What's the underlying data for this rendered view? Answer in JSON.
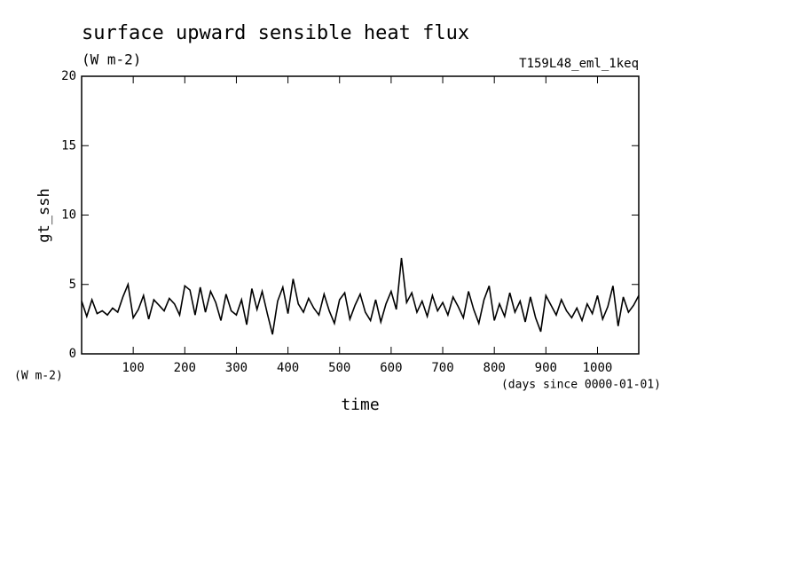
{
  "chart_data": {
    "type": "line",
    "title": "surface upward sensible heat flux",
    "subtitle": "(W m-2)",
    "annotation": "T159L48_eml_1keq",
    "y_label": "gt_ssh",
    "y_units": "(W m-2)",
    "x_label": "time",
    "x_units": "(days since 0000-01-01)",
    "xlim": [
      0,
      1080
    ],
    "ylim": [
      0,
      20
    ],
    "xticks": [
      100,
      200,
      300,
      400,
      500,
      600,
      700,
      800,
      900,
      1000
    ],
    "yticks": [
      0,
      5,
      10,
      15,
      20
    ],
    "color": "#000000",
    "x": [
      0,
      10,
      20,
      30,
      40,
      50,
      60,
      70,
      80,
      90,
      100,
      110,
      120,
      130,
      140,
      150,
      160,
      170,
      180,
      190,
      200,
      210,
      220,
      230,
      240,
      250,
      260,
      270,
      280,
      290,
      300,
      310,
      320,
      330,
      340,
      350,
      360,
      370,
      380,
      390,
      400,
      410,
      420,
      430,
      440,
      450,
      460,
      470,
      480,
      490,
      500,
      510,
      520,
      530,
      540,
      550,
      560,
      570,
      580,
      590,
      600,
      610,
      620,
      630,
      640,
      650,
      660,
      670,
      680,
      690,
      700,
      710,
      720,
      730,
      740,
      750,
      760,
      770,
      780,
      790,
      800,
      810,
      820,
      830,
      840,
      850,
      860,
      870,
      880,
      890,
      900,
      910,
      920,
      930,
      940,
      950,
      960,
      970,
      980,
      990,
      1000,
      1010,
      1020,
      1030,
      1040,
      1050,
      1060,
      1070,
      1080
    ],
    "values": [
      3.8,
      2.7,
      3.9,
      2.9,
      3.1,
      2.8,
      3.3,
      3.0,
      4.1,
      5.0,
      2.6,
      3.2,
      4.2,
      2.5,
      3.9,
      3.5,
      3.1,
      4.0,
      3.6,
      2.8,
      4.9,
      4.6,
      2.8,
      4.8,
      3.0,
      4.5,
      3.7,
      2.4,
      4.3,
      3.1,
      2.8,
      3.9,
      2.1,
      4.7,
      3.2,
      4.5,
      2.9,
      1.4,
      3.8,
      4.8,
      2.9,
      5.4,
      3.6,
      3.0,
      4.0,
      3.3,
      2.8,
      4.3,
      3.1,
      2.2,
      3.9,
      4.4,
      2.5,
      3.5,
      4.3,
      3.0,
      2.4,
      3.9,
      2.3,
      3.6,
      4.5,
      3.2,
      6.9,
      3.7,
      4.4,
      3.0,
      3.8,
      2.7,
      4.2,
      3.1,
      3.7,
      2.8,
      4.1,
      3.4,
      2.6,
      4.5,
      3.2,
      2.2,
      3.9,
      4.9,
      2.4,
      3.6,
      2.7,
      4.4,
      3.0,
      3.8,
      2.3,
      4.1,
      2.6,
      1.6,
      4.2,
      3.5,
      2.8,
      3.9,
      3.1,
      2.6,
      3.3,
      2.4,
      3.6,
      2.9,
      4.2,
      2.5,
      3.4,
      4.9,
      2.0,
      4.1,
      3.0,
      3.5,
      4.2
    ]
  }
}
